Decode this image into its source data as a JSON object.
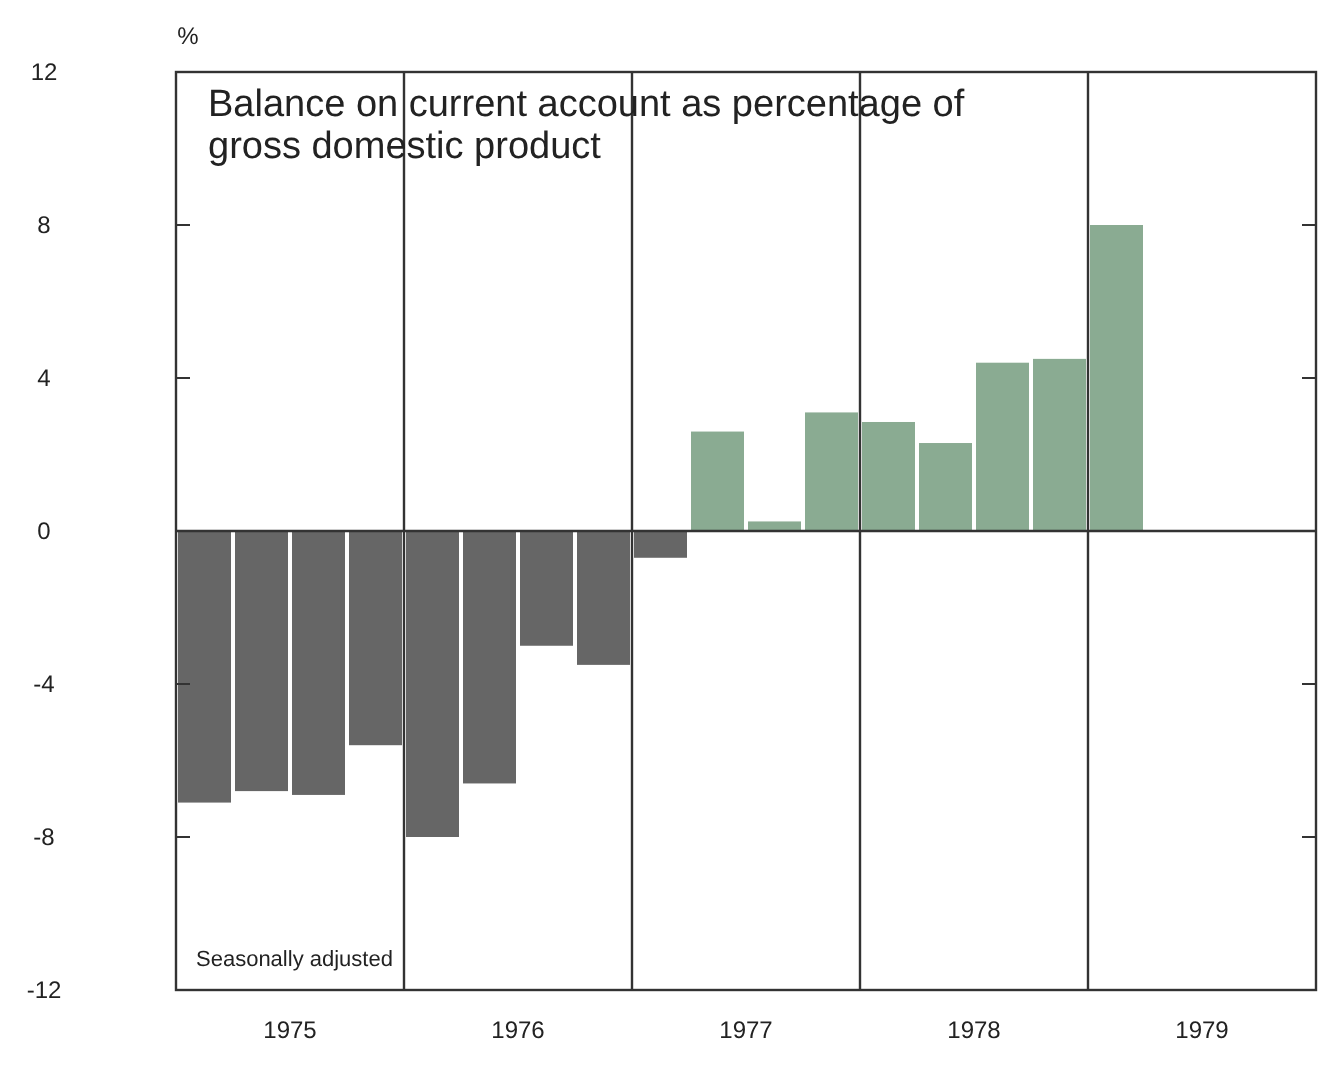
{
  "chart_data": {
    "type": "bar",
    "title": "Balance on current account as percentage of gross domestic product",
    "ylabel": "%",
    "x": [
      1975.125,
      1975.375,
      1975.625,
      1975.875,
      1976.125,
      1976.375,
      1976.625,
      1976.875,
      1977.125,
      1977.375,
      1977.625,
      1977.875,
      1978.125,
      1978.375,
      1978.625,
      1978.875,
      1979.125
    ],
    "values": [
      -7.1,
      -6.8,
      -6.9,
      -5.6,
      -8.0,
      -6.6,
      -3.0,
      -3.5,
      -0.7,
      2.6,
      0.25,
      3.1,
      2.85,
      2.3,
      4.4,
      4.5,
      8.0
    ],
    "colors": [
      "#666666",
      "#666666",
      "#666666",
      "#666666",
      "#666666",
      "#666666",
      "#666666",
      "#666666",
      "#666666",
      "#8aab92",
      "#8aab92",
      "#8aab92",
      "#8aab92",
      "#8aab92",
      "#8aab92",
      "#8aab92",
      "#8aab92"
    ],
    "xlim": [
      1975,
      1980
    ],
    "xticks": [
      {
        "value": 1975.5,
        "label": "1975"
      },
      {
        "value": 1976.5,
        "label": "1976"
      },
      {
        "value": 1977.5,
        "label": "1977"
      },
      {
        "value": 1978.5,
        "label": "1978"
      },
      {
        "value": 1979.5,
        "label": "1979"
      }
    ],
    "ylim": [
      -12,
      12
    ],
    "yticks": [
      -12,
      -8,
      -4,
      0,
      4,
      8,
      12
    ],
    "ref_lines": [
      {
        "axis": "x",
        "value": 1976,
        "color": "#333333"
      },
      {
        "axis": "x",
        "value": 1977,
        "color": "#333333"
      },
      {
        "axis": "x",
        "value": 1978,
        "color": "#333333"
      },
      {
        "axis": "x",
        "value": 1979,
        "color": "#333333"
      }
    ],
    "annotations": [
      "Seasonally adjusted"
    ]
  }
}
